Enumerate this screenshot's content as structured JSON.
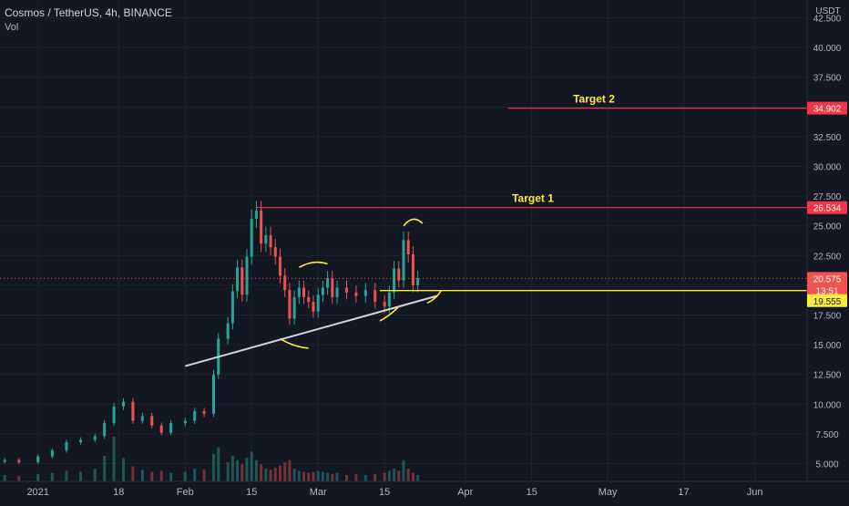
{
  "header": {
    "symbol_line": "Cosmos / TetherUS, 4h, BINANCE",
    "indicator": "Vol"
  },
  "colors": {
    "background": "#131722",
    "grid": "#1e222d",
    "axis_text": "#b2b5be",
    "up": "#26a69a",
    "down": "#ef5350",
    "target_line": "#f23645",
    "support_line": "#ffeb3b",
    "trend_line": "#d1d4dc",
    "annotation": "#ffeb3b",
    "price_dotted": "#ef5350"
  },
  "chart_data": {
    "type": "candlestick",
    "title": "Cosmos / TetherUS, 4h, BINANCE",
    "currency": "USDT",
    "y_axis_ticks": [
      5,
      7.5,
      10,
      12.5,
      15,
      17.5,
      20,
      22.5,
      25,
      27.5,
      30,
      32.5,
      35,
      37.5,
      40,
      42.5
    ],
    "y_axis_tick_labels": [
      "5.000",
      "7.500",
      "10.000",
      "12.500",
      "15.000",
      "17.500",
      "20.000",
      "22.500",
      "25.000",
      "27.500",
      "30.000",
      "32.500",
      "35.000",
      "37.500",
      "40.000",
      "42.500"
    ],
    "ylim": [
      3.5,
      44
    ],
    "x_axis_ticks": [
      {
        "date": "2021-01-01",
        "label": "2021"
      },
      {
        "date": "2021-01-18",
        "label": "18"
      },
      {
        "date": "2021-02-01",
        "label": "Feb"
      },
      {
        "date": "2021-02-15",
        "label": "15"
      },
      {
        "date": "2021-03-01",
        "label": "Mar"
      },
      {
        "date": "2021-03-15",
        "label": "15"
      },
      {
        "date": "2021-04-01",
        "label": "Apr"
      },
      {
        "date": "2021-04-15",
        "label": "15"
      },
      {
        "date": "2021-05-01",
        "label": "May"
      },
      {
        "date": "2021-05-17",
        "label": "17"
      },
      {
        "date": "2021-06-01",
        "label": "Jun"
      }
    ],
    "xlim": [
      "2020-12-24",
      "2021-06-12"
    ],
    "price_series": [
      {
        "date": "2020-12-25",
        "close": 5.3
      },
      {
        "date": "2020-12-28",
        "close": 5.1
      },
      {
        "date": "2021-01-01",
        "close": 5.6
      },
      {
        "date": "2021-01-04",
        "close": 6.1
      },
      {
        "date": "2021-01-07",
        "close": 6.8
      },
      {
        "date": "2021-01-10",
        "close": 7.0
      },
      {
        "date": "2021-01-13",
        "close": 7.3
      },
      {
        "date": "2021-01-15",
        "close": 8.4
      },
      {
        "date": "2021-01-17",
        "close": 9.8
      },
      {
        "date": "2021-01-19",
        "close": 10.2
      },
      {
        "date": "2021-01-21",
        "close": 8.6
      },
      {
        "date": "2021-01-23",
        "close": 9.0
      },
      {
        "date": "2021-01-25",
        "close": 8.2
      },
      {
        "date": "2021-01-27",
        "close": 7.6
      },
      {
        "date": "2021-01-29",
        "close": 8.4
      },
      {
        "date": "2021-02-01",
        "close": 8.6
      },
      {
        "date": "2021-02-03",
        "close": 9.4
      },
      {
        "date": "2021-02-05",
        "close": 9.2
      },
      {
        "date": "2021-02-07",
        "close": 12.5
      },
      {
        "date": "2021-02-08",
        "close": 15.5
      },
      {
        "date": "2021-02-10",
        "close": 16.8
      },
      {
        "date": "2021-02-11",
        "close": 19.5
      },
      {
        "date": "2021-02-12",
        "close": 21.5
      },
      {
        "date": "2021-02-13",
        "close": 19.2
      },
      {
        "date": "2021-02-14",
        "close": 22.4
      },
      {
        "date": "2021-02-15",
        "close": 25.6
      },
      {
        "date": "2021-02-16",
        "close": 26.3
      },
      {
        "date": "2021-02-17",
        "close": 23.5
      },
      {
        "date": "2021-02-18",
        "close": 24.2
      },
      {
        "date": "2021-02-19",
        "close": 23.2
      },
      {
        "date": "2021-02-20",
        "close": 22.4
      },
      {
        "date": "2021-02-21",
        "close": 20.8
      },
      {
        "date": "2021-02-22",
        "close": 19.6
      },
      {
        "date": "2021-02-23",
        "close": 17.2
      },
      {
        "date": "2021-02-24",
        "close": 19.0
      },
      {
        "date": "2021-02-25",
        "close": 19.8
      },
      {
        "date": "2021-02-26",
        "close": 19.0
      },
      {
        "date": "2021-02-27",
        "close": 18.6
      },
      {
        "date": "2021-02-28",
        "close": 17.8
      },
      {
        "date": "2021-03-01",
        "close": 19.2
      },
      {
        "date": "2021-03-02",
        "close": 19.8
      },
      {
        "date": "2021-03-03",
        "close": 20.6
      },
      {
        "date": "2021-03-04",
        "close": 19.0
      },
      {
        "date": "2021-03-05",
        "close": 19.8
      },
      {
        "date": "2021-03-07",
        "close": 19.4
      },
      {
        "date": "2021-03-09",
        "close": 19.1
      },
      {
        "date": "2021-03-11",
        "close": 19.6
      },
      {
        "date": "2021-03-13",
        "close": 18.6
      },
      {
        "date": "2021-03-15",
        "close": 18.2
      },
      {
        "date": "2021-03-16",
        "close": 19.4
      },
      {
        "date": "2021-03-17",
        "close": 21.4
      },
      {
        "date": "2021-03-18",
        "close": 20.4
      },
      {
        "date": "2021-03-19",
        "close": 23.8
      },
      {
        "date": "2021-03-20",
        "close": 22.6
      },
      {
        "date": "2021-03-21",
        "close": 20.0
      },
      {
        "date": "2021-03-22",
        "close": 20.6
      }
    ],
    "volume_series": [
      {
        "date": "2020-12-25",
        "v": 0.6
      },
      {
        "date": "2020-12-28",
        "v": 0.5
      },
      {
        "date": "2021-01-01",
        "v": 0.7
      },
      {
        "date": "2021-01-04",
        "v": 0.8
      },
      {
        "date": "2021-01-07",
        "v": 1.0
      },
      {
        "date": "2021-01-10",
        "v": 0.9
      },
      {
        "date": "2021-01-13",
        "v": 1.2
      },
      {
        "date": "2021-01-15",
        "v": 2.4
      },
      {
        "date": "2021-01-17",
        "v": 4.2
      },
      {
        "date": "2021-01-19",
        "v": 2.2
      },
      {
        "date": "2021-01-21",
        "v": 1.4
      },
      {
        "date": "2021-01-23",
        "v": 1.1
      },
      {
        "date": "2021-01-25",
        "v": 0.9
      },
      {
        "date": "2021-01-27",
        "v": 1.0
      },
      {
        "date": "2021-01-29",
        "v": 0.8
      },
      {
        "date": "2021-02-01",
        "v": 0.9
      },
      {
        "date": "2021-02-03",
        "v": 1.2
      },
      {
        "date": "2021-02-05",
        "v": 1.1
      },
      {
        "date": "2021-02-07",
        "v": 2.6
      },
      {
        "date": "2021-02-08",
        "v": 3.2
      },
      {
        "date": "2021-02-10",
        "v": 1.8
      },
      {
        "date": "2021-02-11",
        "v": 2.4
      },
      {
        "date": "2021-02-12",
        "v": 2.0
      },
      {
        "date": "2021-02-13",
        "v": 1.6
      },
      {
        "date": "2021-02-14",
        "v": 2.2
      },
      {
        "date": "2021-02-15",
        "v": 2.8
      },
      {
        "date": "2021-02-16",
        "v": 2.0
      },
      {
        "date": "2021-02-17",
        "v": 1.6
      },
      {
        "date": "2021-02-18",
        "v": 1.2
      },
      {
        "date": "2021-02-19",
        "v": 1.1
      },
      {
        "date": "2021-02-20",
        "v": 1.3
      },
      {
        "date": "2021-02-21",
        "v": 1.5
      },
      {
        "date": "2021-02-22",
        "v": 1.8
      },
      {
        "date": "2021-02-23",
        "v": 2.0
      },
      {
        "date": "2021-02-24",
        "v": 1.2
      },
      {
        "date": "2021-02-25",
        "v": 1.0
      },
      {
        "date": "2021-02-26",
        "v": 0.9
      },
      {
        "date": "2021-02-27",
        "v": 0.8
      },
      {
        "date": "2021-02-28",
        "v": 0.9
      },
      {
        "date": "2021-03-01",
        "v": 1.0
      },
      {
        "date": "2021-03-02",
        "v": 0.9
      },
      {
        "date": "2021-03-03",
        "v": 0.8
      },
      {
        "date": "2021-03-04",
        "v": 0.7
      },
      {
        "date": "2021-03-05",
        "v": 0.8
      },
      {
        "date": "2021-03-07",
        "v": 0.6
      },
      {
        "date": "2021-03-09",
        "v": 0.7
      },
      {
        "date": "2021-03-11",
        "v": 0.6
      },
      {
        "date": "2021-03-13",
        "v": 0.7
      },
      {
        "date": "2021-03-15",
        "v": 0.8
      },
      {
        "date": "2021-03-16",
        "v": 1.0
      },
      {
        "date": "2021-03-17",
        "v": 1.2
      },
      {
        "date": "2021-03-18",
        "v": 1.0
      },
      {
        "date": "2021-03-19",
        "v": 2.0
      },
      {
        "date": "2021-03-20",
        "v": 1.2
      },
      {
        "date": "2021-03-21",
        "v": 0.8
      },
      {
        "date": "2021-03-22",
        "v": 0.6
      }
    ],
    "volume_max": 6,
    "annotations": {
      "target_lines": [
        {
          "label": "Target 2",
          "value": 34.902,
          "price_label": "34.902",
          "start_date": "2021-04-10"
        },
        {
          "label": "Target 1",
          "value": 26.534,
          "price_label": "26.534",
          "start_date": "2021-02-16"
        }
      ],
      "support_line": {
        "value": 19.555,
        "price_label": "19.555",
        "start_date": "2021-03-14"
      },
      "current_price": {
        "value": 20.575,
        "price_label": "20.575",
        "countdown": "13:51"
      },
      "trend_line": {
        "start": {
          "date": "2021-02-01",
          "value": 13.2
        },
        "end": {
          "date": "2021-03-26",
          "value": 19.1
        }
      },
      "arcs": [
        {
          "name": "left-shoulder-arc",
          "points": [
            {
              "date": "2021-02-21",
              "value": 15.5
            },
            {
              "date": "2021-02-24",
              "value": 14.8
            },
            {
              "date": "2021-02-27",
              "value": 14.7
            }
          ]
        },
        {
          "name": "head-arc",
          "points": [
            {
              "date": "2021-02-25",
              "value": 21.5
            },
            {
              "date": "2021-02-28",
              "value": 22.2
            },
            {
              "date": "2021-03-03",
              "value": 21.8
            }
          ]
        },
        {
          "name": "right-shoulder-arc",
          "points": [
            {
              "date": "2021-03-14",
              "value": 17.0
            },
            {
              "date": "2021-03-16",
              "value": 17.4
            },
            {
              "date": "2021-03-18",
              "value": 18.2
            }
          ]
        },
        {
          "name": "top-arc",
          "points": [
            {
              "date": "2021-03-19",
              "value": 25.0
            },
            {
              "date": "2021-03-21",
              "value": 26.0
            },
            {
              "date": "2021-03-23",
              "value": 25.2
            }
          ]
        },
        {
          "name": "end-arc",
          "points": [
            {
              "date": "2021-03-24",
              "value": 18.5
            },
            {
              "date": "2021-03-26",
              "value": 18.9
            },
            {
              "date": "2021-03-27",
              "value": 19.6
            }
          ]
        }
      ]
    }
  }
}
